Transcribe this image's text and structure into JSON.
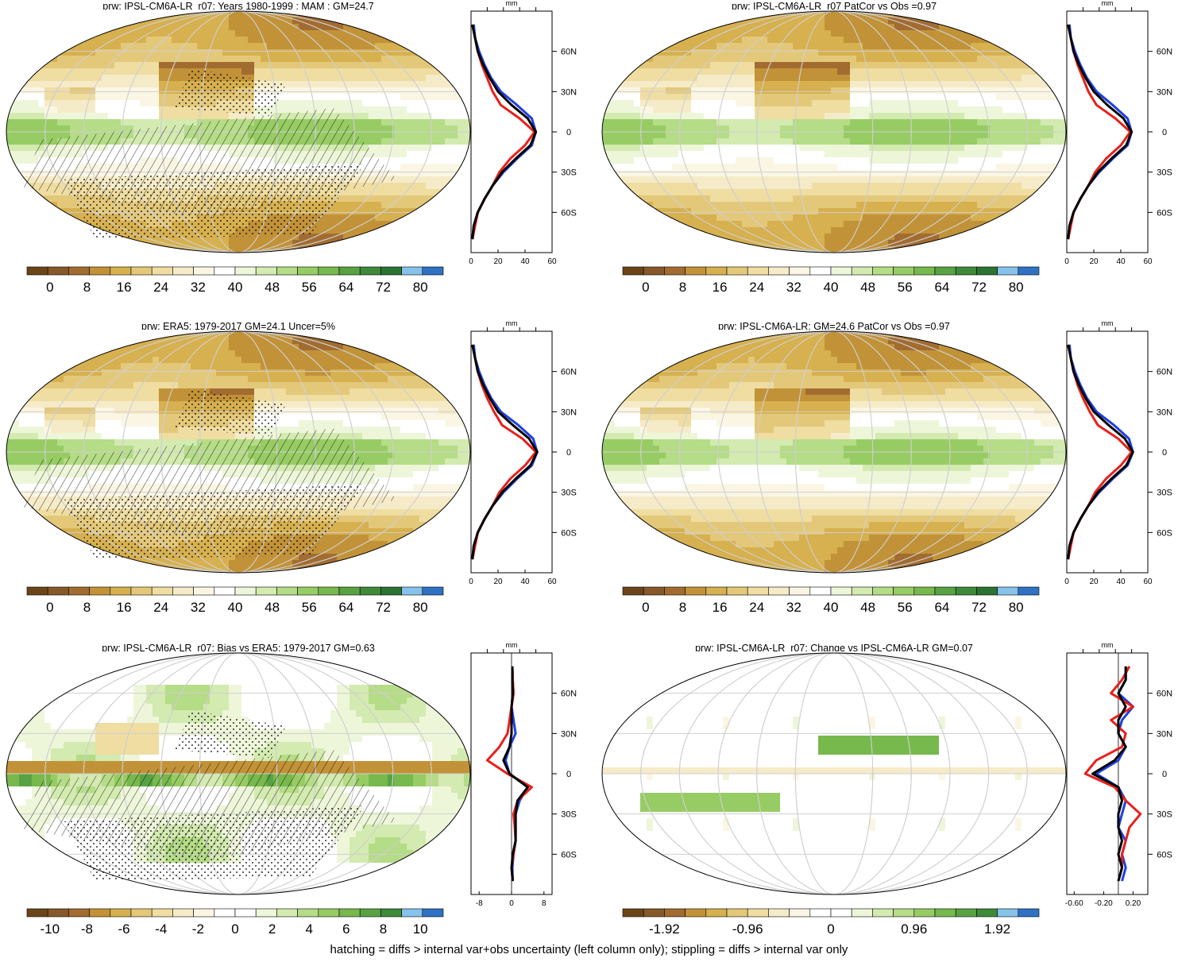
{
  "chart_data": {
    "type": "heatmap",
    "variable": "prw",
    "units": "mm",
    "footer": "hatching = diffs > internal var+obs uncertainty (left column only); stippling = diffs > internal var only",
    "profile_lat_ticks": [
      "60N",
      "30N",
      "0",
      "30S",
      "60S"
    ],
    "palettes": {
      "absolute": [
        "#6b4518",
        "#87582a",
        "#a26c31",
        "#c29238",
        "#d7b04f",
        "#e4c87a",
        "#efdda2",
        "#f6ebc8",
        "#fbf6e4",
        "#ffffff",
        "#eef6da",
        "#d3eab0",
        "#b5dc86",
        "#97cc64",
        "#77b94c",
        "#58a243",
        "#3e8a3a",
        "#2b7332",
        "#86c2ea",
        "#2f72c4"
      ],
      "diverging": [
        "#6b4518",
        "#87582a",
        "#a26c31",
        "#c29238",
        "#d7b04f",
        "#e4c87a",
        "#efdda2",
        "#f6ebc8",
        "#fbf6e4",
        "#ffffff",
        "#ffffff",
        "#eef6da",
        "#d3eab0",
        "#b5dc86",
        "#97cc64",
        "#77b94c",
        "#58a243",
        "#3e8a3a",
        "#86c2ea",
        "#2f72c4"
      ]
    },
    "panels": [
      {
        "title": "prw: IPSL-CM6A-LR_r07: Years 1980-1999 : MAM : GM=24.7",
        "kind": "model_climatology",
        "colorbar_labels": [
          "0",
          "8",
          "16",
          "24",
          "32",
          "40",
          "48",
          "56",
          "64",
          "72",
          "80"
        ],
        "profile_xticks": [
          "0",
          "20",
          "40",
          "60"
        ],
        "profile_xlim": [
          0,
          60
        ],
        "series_colors": {
          "model": "#e8201c",
          "obs": "#1f3fe0",
          "mmm": "#000000"
        },
        "zonal_mean_lat": [
          -80,
          -70,
          -60,
          -50,
          -40,
          -30,
          -20,
          -10,
          0,
          10,
          20,
          30,
          40,
          50,
          60,
          70,
          80
        ],
        "zonal_mean_model": [
          1,
          3,
          5,
          10,
          16,
          21,
          29,
          40,
          47,
          36,
          22,
          16,
          12,
          8,
          5,
          3,
          1
        ],
        "zonal_mean_obs": [
          1,
          2,
          5,
          10,
          16,
          24,
          34,
          45,
          48,
          45,
          34,
          22,
          15,
          10,
          6,
          3,
          2
        ],
        "zonal_mean_mmm": [
          1,
          2,
          5,
          10,
          16,
          23,
          33,
          44,
          48,
          42,
          30,
          20,
          14,
          9,
          5,
          3,
          1
        ],
        "hatching": true,
        "stippling": true
      },
      {
        "title": "prw: IPSL-CM6A-LR_r07 PatCor vs Obs =0.97",
        "kind": "model_climatology",
        "colorbar_labels": [
          "0",
          "8",
          "16",
          "24",
          "32",
          "40",
          "48",
          "56",
          "64",
          "72",
          "80"
        ],
        "profile_xticks": [
          "0",
          "20",
          "40",
          "60"
        ],
        "profile_xlim": [
          0,
          60
        ],
        "series_colors": {
          "model": "#e8201c",
          "obs": "#1f3fe0",
          "mmm": "#000000"
        },
        "zonal_mean_lat": [
          -80,
          -70,
          -60,
          -50,
          -40,
          -30,
          -20,
          -10,
          0,
          10,
          20,
          30,
          40,
          50,
          60,
          70,
          80
        ],
        "zonal_mean_model": [
          1,
          3,
          5,
          10,
          16,
          21,
          29,
          40,
          47,
          36,
          22,
          16,
          12,
          8,
          5,
          3,
          1
        ],
        "zonal_mean_obs": [
          1,
          2,
          5,
          10,
          16,
          24,
          34,
          45,
          48,
          45,
          34,
          22,
          15,
          10,
          6,
          3,
          2
        ],
        "zonal_mean_mmm": [
          1,
          2,
          5,
          10,
          16,
          23,
          33,
          44,
          48,
          42,
          30,
          20,
          14,
          9,
          5,
          3,
          1
        ],
        "hatching": false,
        "stippling": false
      },
      {
        "title": "prw: ERA5: 1979-2017 GM=24.1 Uncer=5%",
        "kind": "obs_climatology",
        "colorbar_labels": [
          "0",
          "8",
          "16",
          "24",
          "32",
          "40",
          "48",
          "56",
          "64",
          "72",
          "80"
        ],
        "profile_xticks": [
          "0",
          "20",
          "40",
          "60"
        ],
        "profile_xlim": [
          0,
          60
        ],
        "series_colors": {
          "model": "#e8201c",
          "obs": "#1f3fe0",
          "mmm": "#000000"
        },
        "zonal_mean_lat": [
          -80,
          -70,
          -60,
          -50,
          -40,
          -30,
          -20,
          -10,
          0,
          10,
          20,
          30,
          40,
          50,
          60,
          70,
          80
        ],
        "zonal_mean_model": [
          1,
          3,
          5,
          10,
          16,
          21,
          29,
          40,
          48,
          38,
          23,
          17,
          12,
          8,
          5,
          3,
          1
        ],
        "zonal_mean_obs": [
          1,
          2,
          5,
          10,
          16,
          24,
          34,
          45,
          49,
          46,
          35,
          22,
          15,
          10,
          6,
          3,
          2
        ],
        "zonal_mean_mmm": [
          1,
          2,
          5,
          10,
          16,
          23,
          33,
          44,
          49,
          43,
          31,
          20,
          14,
          9,
          5,
          3,
          1
        ],
        "hatching": true,
        "stippling": true
      },
      {
        "title": "prw: IPSL-CM6A-LR: GM=24.6 PatCor vs Obs =0.97",
        "kind": "mmm_climatology",
        "colorbar_labels": [
          "0",
          "8",
          "16",
          "24",
          "32",
          "40",
          "48",
          "56",
          "64",
          "72",
          "80"
        ],
        "profile_xticks": [
          "0",
          "20",
          "40",
          "60"
        ],
        "profile_xlim": [
          0,
          60
        ],
        "series_colors": {
          "model": "#e8201c",
          "obs": "#1f3fe0",
          "mmm": "#000000"
        },
        "zonal_mean_lat": [
          -80,
          -70,
          -60,
          -50,
          -40,
          -30,
          -20,
          -10,
          0,
          10,
          20,
          30,
          40,
          50,
          60,
          70,
          80
        ],
        "zonal_mean_model": [
          1,
          3,
          5,
          10,
          16,
          21,
          29,
          40,
          48,
          38,
          23,
          17,
          12,
          8,
          5,
          3,
          1
        ],
        "zonal_mean_obs": [
          1,
          2,
          5,
          10,
          16,
          24,
          34,
          45,
          49,
          46,
          35,
          22,
          15,
          10,
          6,
          3,
          2
        ],
        "zonal_mean_mmm": [
          1,
          2,
          5,
          10,
          16,
          23,
          33,
          44,
          49,
          43,
          31,
          20,
          14,
          9,
          5,
          3,
          1
        ],
        "hatching": false,
        "stippling": false
      },
      {
        "title": "prw: IPSL-CM6A-LR_r07: Bias vs ERA5: 1979-2017 GM=0.63",
        "kind": "bias",
        "colorbar_labels": [
          "-10",
          "-8",
          "-6",
          "-4",
          "-2",
          "0",
          "2",
          "4",
          "6",
          "8",
          "10"
        ],
        "profile_xticks": [
          "-8",
          "0",
          "8"
        ],
        "profile_xlim": [
          -10,
          10
        ],
        "series_colors": {
          "model": "#e8201c",
          "obs": "#1f3fe0",
          "mmm": "#000000"
        },
        "zonal_mean_lat": [
          -80,
          -70,
          -60,
          -50,
          -40,
          -30,
          -20,
          -10,
          0,
          10,
          20,
          30,
          40,
          50,
          60,
          70,
          80
        ],
        "zonal_mean_model": [
          0.3,
          0,
          0.5,
          1,
          0.8,
          0.5,
          1.5,
          5,
          -1,
          -6,
          -3,
          -1,
          -0.5,
          0,
          0.5,
          0.3,
          0.2
        ],
        "zonal_mean_obs": [
          0.3,
          0.2,
          0.5,
          1,
          1,
          1,
          2,
          4,
          -0.5,
          -1.5,
          -0.5,
          1,
          0.5,
          0,
          0.5,
          0.3,
          0.2
        ],
        "zonal_mean_mmm": [
          0.3,
          0,
          0.3,
          1,
          1,
          1,
          1.5,
          4,
          -0.5,
          -2,
          -0.5,
          0,
          0,
          0,
          0.3,
          0.2,
          0.2
        ],
        "hatching": true,
        "stippling": true
      },
      {
        "title": "prw: IPSL-CM6A-LR_r07: Change vs IPSL-CM6A-LR GM=0.07",
        "kind": "change",
        "colorbar_labels": [
          "-1.92",
          "-0.96",
          "0",
          "0.96",
          "1.92"
        ],
        "colorbar_label_bins": [
          2,
          6,
          10,
          14,
          18
        ],
        "profile_xticks": [
          "-0.60",
          "-0.20",
          "0.20"
        ],
        "profile_xlim": [
          -0.7,
          0.4
        ],
        "series_colors": {
          "model": "#e8201c",
          "obs": "#1f3fe0",
          "mmm": "#000000"
        },
        "zonal_mean_lat": [
          -80,
          -70,
          -60,
          -50,
          -40,
          -30,
          -20,
          -10,
          0,
          10,
          20,
          30,
          40,
          50,
          60,
          70,
          80
        ],
        "zonal_mean_model": [
          0,
          0.05,
          0.05,
          0.1,
          0.15,
          0.3,
          0.1,
          -0.05,
          -0.45,
          -0.3,
          0.05,
          0.1,
          -0.1,
          0.2,
          -0.1,
          0.05,
          0.15
        ],
        "zonal_mean_obs": [
          0.05,
          0.1,
          0.05,
          0.1,
          0,
          0.05,
          0.1,
          0,
          -0.3,
          0,
          0.1,
          0,
          0.05,
          0.2,
          0,
          0.1,
          0.1
        ],
        "zonal_mean_mmm": [
          0,
          0.05,
          0,
          0.05,
          0,
          0,
          0.05,
          0,
          -0.35,
          -0.05,
          0.1,
          0,
          0,
          0.1,
          0,
          0.1,
          0.1
        ],
        "hatching": false,
        "stippling": false
      }
    ]
  }
}
